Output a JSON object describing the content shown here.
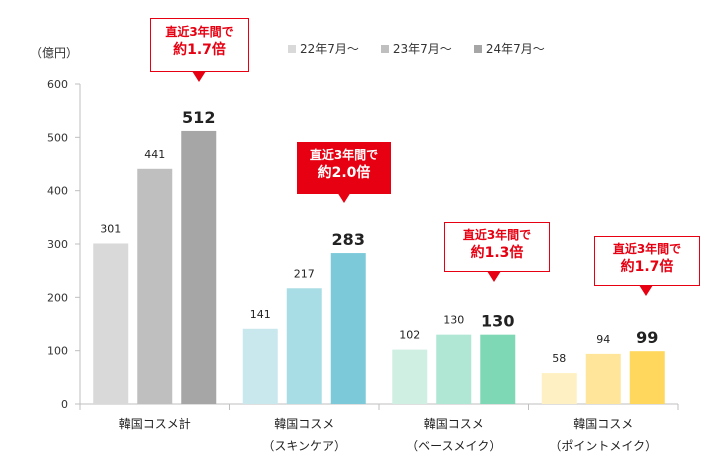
{
  "y_unit": "（億円）",
  "chart_data": {
    "type": "bar",
    "categories": [
      [
        "韓国コスメ計"
      ],
      [
        "韓国コスメ",
        "（スキンケア）"
      ],
      [
        "韓国コスメ",
        "（ベースメイク）"
      ],
      [
        "韓国コスメ",
        "（ポイントメイク）"
      ]
    ],
    "series": [
      {
        "name": "22年7月～",
        "values": [
          301,
          141,
          102,
          58
        ]
      },
      {
        "name": "23年7月～",
        "values": [
          441,
          217,
          130,
          94
        ]
      },
      {
        "name": "24年7月～",
        "values": [
          512,
          283,
          130,
          99
        ]
      }
    ],
    "ylim": [
      0,
      600
    ],
    "yticks": [
      0,
      100,
      200,
      300,
      400,
      500,
      600
    ],
    "legend_position": "top",
    "colors": {
      "group_palettes": [
        [
          "#d9d9d9",
          "#bfbfbf",
          "#a6a6a6"
        ],
        [
          "#c9e8ee",
          "#a9dde6",
          "#7ccad9"
        ],
        [
          "#d0efe3",
          "#b0e6d4",
          "#7fd8b5"
        ],
        [
          "#fff0c4",
          "#ffe59a",
          "#ffd75c"
        ]
      ],
      "legend": [
        "#d9d9d9",
        "#bfbfbf",
        "#a6a6a6"
      ],
      "accent": "#e60012"
    },
    "annotations": [
      {
        "line1": "直近3年間で",
        "line2": "約1.7倍",
        "filled": false
      },
      {
        "line1": "直近3年間で",
        "line2": "約2.0倍",
        "filled": true
      },
      {
        "line1": "直近3年間で",
        "line2": "約1.3倍",
        "filled": false
      },
      {
        "line1": "直近3年間で",
        "line2": "約1.7倍",
        "filled": false
      }
    ]
  }
}
